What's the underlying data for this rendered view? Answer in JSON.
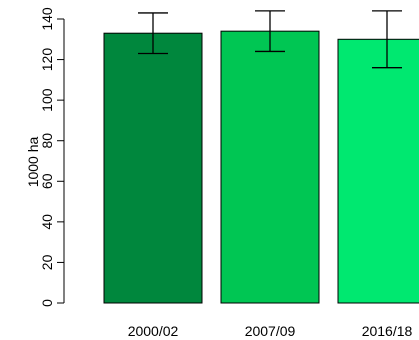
{
  "chart_data": {
    "type": "bar",
    "title": "",
    "xlabel": "",
    "ylabel": "1000 ha",
    "categories": [
      "2000/02",
      "2007/09",
      "2016/18"
    ],
    "values": [
      133,
      134,
      130
    ],
    "error_low": [
      123,
      124,
      116
    ],
    "error_high": [
      143,
      144,
      144
    ],
    "ylim": [
      0,
      140
    ],
    "yticks": [
      0,
      20,
      40,
      60,
      80,
      100,
      120,
      140
    ],
    "colors": [
      "#00873D",
      "#00C653",
      "#00E870"
    ],
    "grid": false,
    "legend": "none"
  }
}
